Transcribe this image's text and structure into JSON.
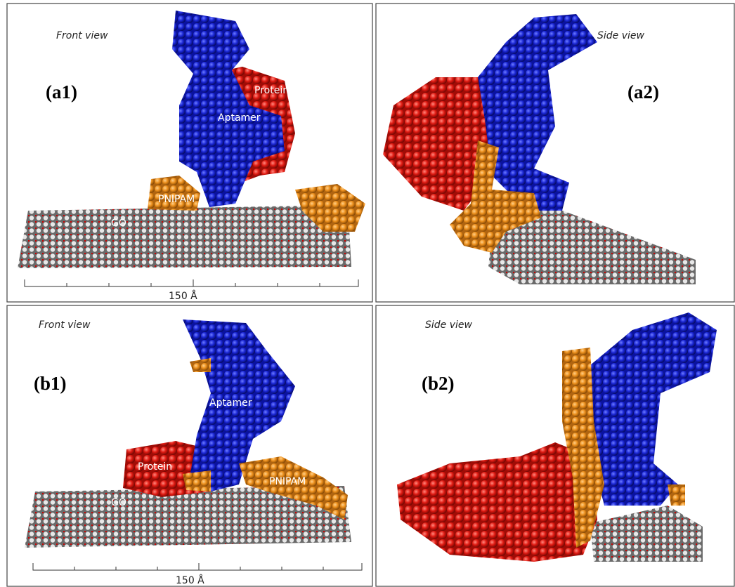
{
  "panels": [
    {
      "label": "(a1)",
      "view": "Front view",
      "annotations": [
        "Protein",
        "Aptamer",
        "PNIPAM",
        "GO"
      ],
      "scale": "150 Å"
    },
    {
      "label": "(a2)",
      "view": "Side view"
    },
    {
      "label": "(b1)",
      "view": "Front view",
      "annotations": [
        "Aptamer",
        "Protein",
        "PNIPAM",
        "GO"
      ],
      "scale": "150 Å"
    },
    {
      "label": "(b2)",
      "view": "Side view"
    }
  ]
}
